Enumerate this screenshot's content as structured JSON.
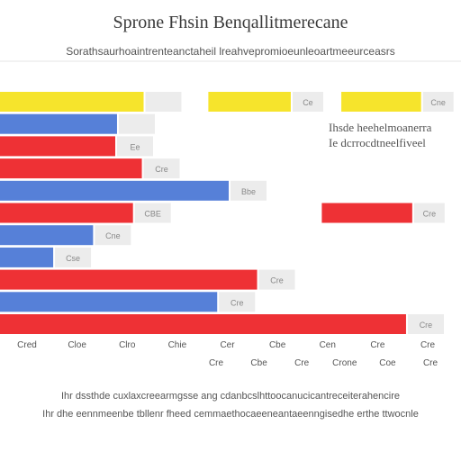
{
  "chart_data": {
    "type": "bar",
    "orientation": "horizontal",
    "title": "Sprone Fhsin Benqallitmerecane",
    "subtitle": "Sorathsaurhoaintrenteanctaheil lreahvepromioeunleoartmeeurceasrs",
    "side_note": [
      "Ihsde heehelmoanerra",
      "Ie dcrrocdtneelfiveel"
    ],
    "footer": [
      "Ihr dssthde cuxlaxcreearmgsse ang cdanbcslhttoocanucicantreceiterahencire",
      "Ihr dhe eennmeenbe tbllenr fheed cemmaethocaeeneantaeenngisedhe erthe ttwocnle"
    ],
    "xlim": [
      0,
      520
    ],
    "colors": {
      "yellow": "#f6e42c",
      "blue": "#5680d8",
      "red": "#ee3135",
      "label_box": "#ececec"
    },
    "bars": [
      {
        "value": 162,
        "color": "yellow",
        "label": ""
      },
      {
        "value": 132,
        "color": "blue",
        "label": ""
      },
      {
        "value": 130,
        "color": "red",
        "label": "Ee"
      },
      {
        "value": 160,
        "color": "red",
        "label": "Cre"
      },
      {
        "value": 258,
        "color": "blue",
        "label": "Bbe"
      },
      {
        "value": 150,
        "color": "red",
        "label": "CBE"
      },
      {
        "value": 105,
        "color": "blue",
        "label": "Cne"
      },
      {
        "value": 60,
        "color": "blue",
        "label": "Cse"
      },
      {
        "value": 290,
        "color": "red",
        "label": "Cre"
      },
      {
        "value": 245,
        "color": "blue",
        "label": "Cre"
      },
      {
        "value": 458,
        "color": "red",
        "label": "Cre"
      }
    ],
    "extra_bars": [
      {
        "row": 0,
        "start": 235,
        "end": 328,
        "color": "yellow",
        "label": "Ce"
      },
      {
        "row": 0,
        "start": 385,
        "end": 475,
        "color": "yellow",
        "label": "Cne"
      },
      {
        "row": 5,
        "start": 363,
        "end": 465,
        "color": "red",
        "label": "Cre"
      }
    ],
    "x_ticks": [
      "Cred",
      "Cloe",
      "Clro",
      "Chie",
      "Cer",
      "Cbe",
      "Cen",
      "Cre",
      "Cre"
    ],
    "x_tick_sublabels": [
      "Cre",
      "Cbe",
      "Cre",
      "Crone",
      "Coe",
      "Cre"
    ]
  }
}
